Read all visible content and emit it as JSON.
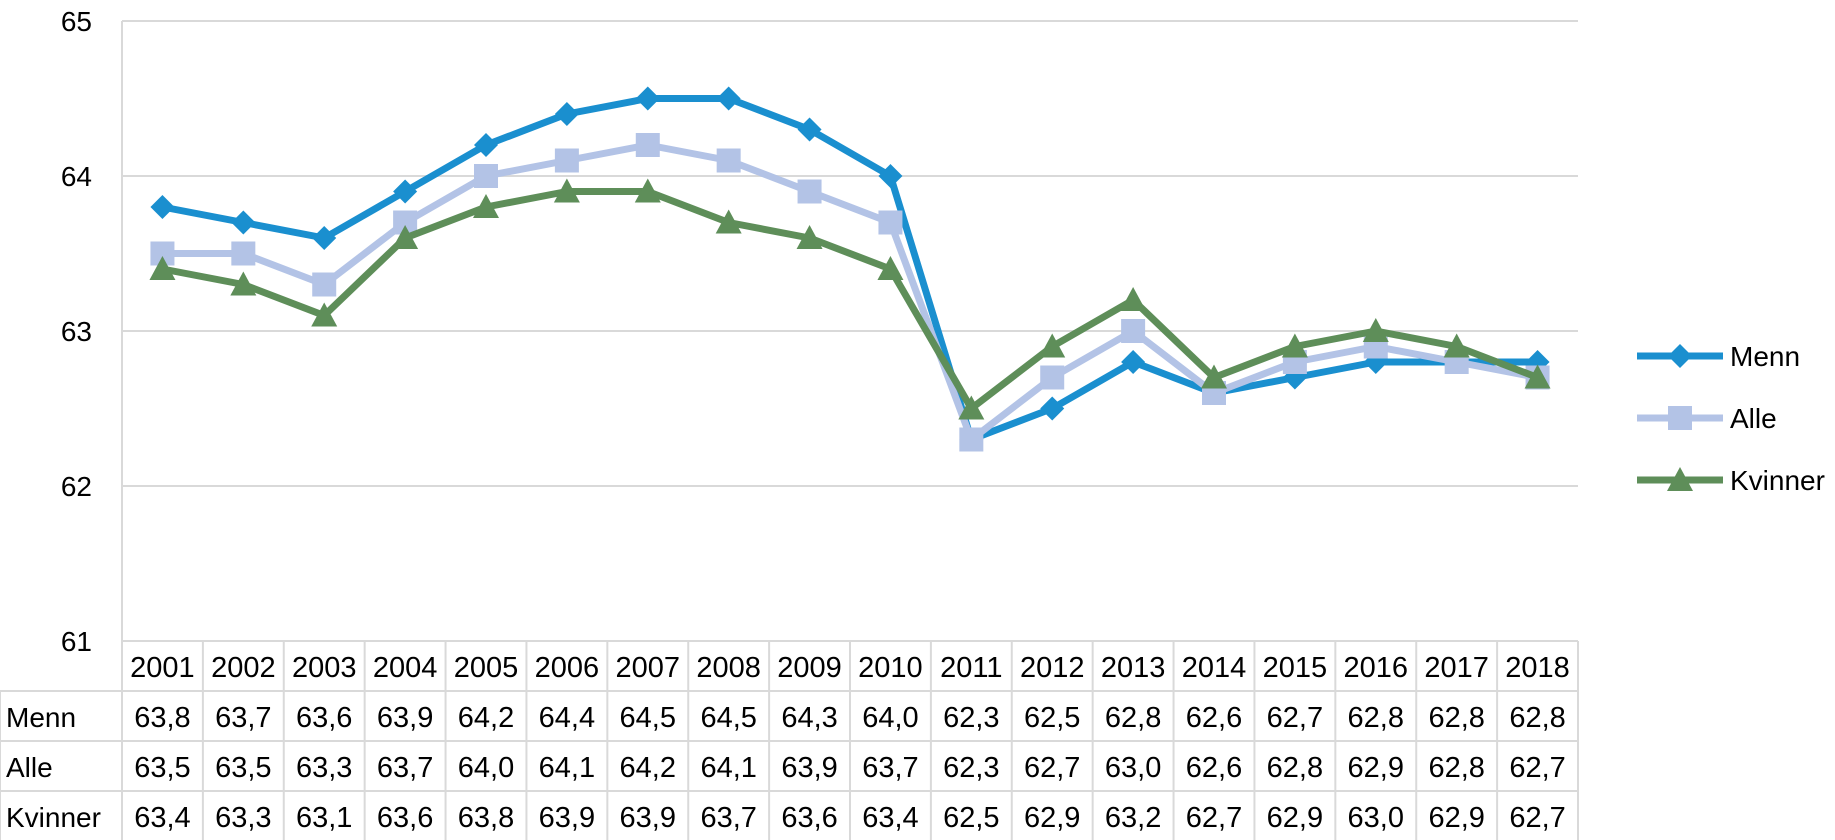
{
  "chart_data": {
    "type": "line",
    "categories": [
      "2001",
      "2002",
      "2003",
      "2004",
      "2005",
      "2006",
      "2007",
      "2008",
      "2009",
      "2010",
      "2011",
      "2012",
      "2013",
      "2014",
      "2015",
      "2016",
      "2017",
      "2018"
    ],
    "series": [
      {
        "name": "Menn",
        "color": "#1a8fcf",
        "marker": "diamond",
        "values": [
          63.8,
          63.7,
          63.6,
          63.9,
          64.2,
          64.4,
          64.5,
          64.5,
          64.3,
          64.0,
          62.3,
          62.5,
          62.8,
          62.6,
          62.7,
          62.8,
          62.8,
          62.8
        ],
        "labels": [
          "63,8",
          "63,7",
          "63,6",
          "63,9",
          "64,2",
          "64,4",
          "64,5",
          "64,5",
          "64,3",
          "64,0",
          "62,3",
          "62,5",
          "62,8",
          "62,6",
          "62,7",
          "62,8",
          "62,8",
          "62,8"
        ]
      },
      {
        "name": "Alle",
        "color": "#b3c3e6",
        "marker": "square",
        "values": [
          63.5,
          63.5,
          63.3,
          63.7,
          64.0,
          64.1,
          64.2,
          64.1,
          63.9,
          63.7,
          62.3,
          62.7,
          63.0,
          62.6,
          62.8,
          62.9,
          62.8,
          62.7
        ],
        "labels": [
          "63,5",
          "63,5",
          "63,3",
          "63,7",
          "64,0",
          "64,1",
          "64,2",
          "64,1",
          "63,9",
          "63,7",
          "62,3",
          "62,7",
          "63,0",
          "62,6",
          "62,8",
          "62,9",
          "62,8",
          "62,7"
        ]
      },
      {
        "name": "Kvinner",
        "color": "#5e8e59",
        "marker": "triangle",
        "values": [
          63.4,
          63.3,
          63.1,
          63.6,
          63.8,
          63.9,
          63.9,
          63.7,
          63.6,
          63.4,
          62.5,
          62.9,
          63.2,
          62.7,
          62.9,
          63.0,
          62.9,
          62.7
        ],
        "labels": [
          "63,4",
          "63,3",
          "63,1",
          "63,6",
          "63,8",
          "63,9",
          "63,9",
          "63,7",
          "63,6",
          "63,4",
          "62,5",
          "62,9",
          "63,2",
          "62,7",
          "62,9",
          "63,0",
          "62,9",
          "62,7"
        ]
      }
    ],
    "y_ticks": [
      "61",
      "62",
      "63",
      "64",
      "65"
    ],
    "ylim": [
      61,
      65
    ],
    "grid": true,
    "legend": "right",
    "data_table": true
  }
}
